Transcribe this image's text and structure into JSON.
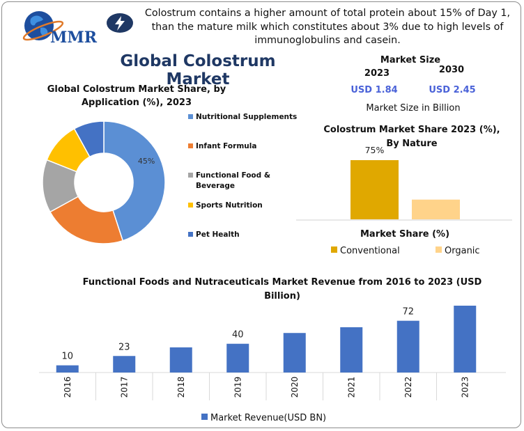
{
  "intro_text": "Colostrum contains a higher amount of total protein about 15% of Day 1, than the mature milk which constitutes about 3% due to high levels of immunoglobulins and casein.",
  "main_title": "Global Colostrum Market",
  "logo": {
    "text": "MMR"
  },
  "market_size": {
    "title": "Market Size",
    "year_left": "2023",
    "year_right": "2030",
    "value_left": "USD 1.84",
    "value_right": "USD 2.45",
    "caption": "Market Size in Billion"
  },
  "colors": {
    "title": "#1f3864",
    "usd": "#4a62d8",
    "blue": "#5b8fd4",
    "orange": "#ed7d31",
    "gray": "#a5a5a5",
    "gold": "#ffc000",
    "navy": "#4472c4",
    "conventional": "#e0a800",
    "organic": "#ffd38a",
    "revenue": "#4472c4"
  },
  "chart_data": [
    {
      "type": "pie",
      "title": "Global Colostrum Market Share, by Application (%), 2023",
      "categories": [
        "Nutritional Supplements",
        "Infant Formula",
        "Functional Food & Beverage",
        "Sports Nutrition",
        "Pet Health"
      ],
      "values": [
        45,
        22,
        14,
        11,
        8
      ],
      "data_labels": [
        "45%",
        "",
        "",
        "",
        ""
      ],
      "legend_position": "right"
    },
    {
      "type": "bar",
      "title": "Colostrum Market Share 2023 (%), By Nature",
      "xlabel": "Market Share (%)",
      "categories": [
        "Conventional",
        "Organic"
      ],
      "values": [
        75,
        25
      ],
      "data_labels": [
        "75%",
        ""
      ],
      "ylim": [
        0,
        100
      ],
      "legend_position": "bottom"
    },
    {
      "type": "bar",
      "title": "Functional Foods and Nutraceuticals Market Revenue from 2016 to 2023 (USD Billion)",
      "categories": [
        "2016",
        "2017",
        "2018",
        "2019",
        "2020",
        "2021",
        "2022",
        "2023"
      ],
      "series": [
        {
          "name": "Market Revenue(USD BN)",
          "values": [
            10,
            23,
            35,
            40,
            55,
            63,
            72,
            93
          ]
        }
      ],
      "data_labels": [
        "10",
        "23",
        "",
        "40",
        "",
        "",
        "72",
        ""
      ],
      "ylim": [
        0,
        100
      ],
      "legend_position": "bottom"
    }
  ]
}
